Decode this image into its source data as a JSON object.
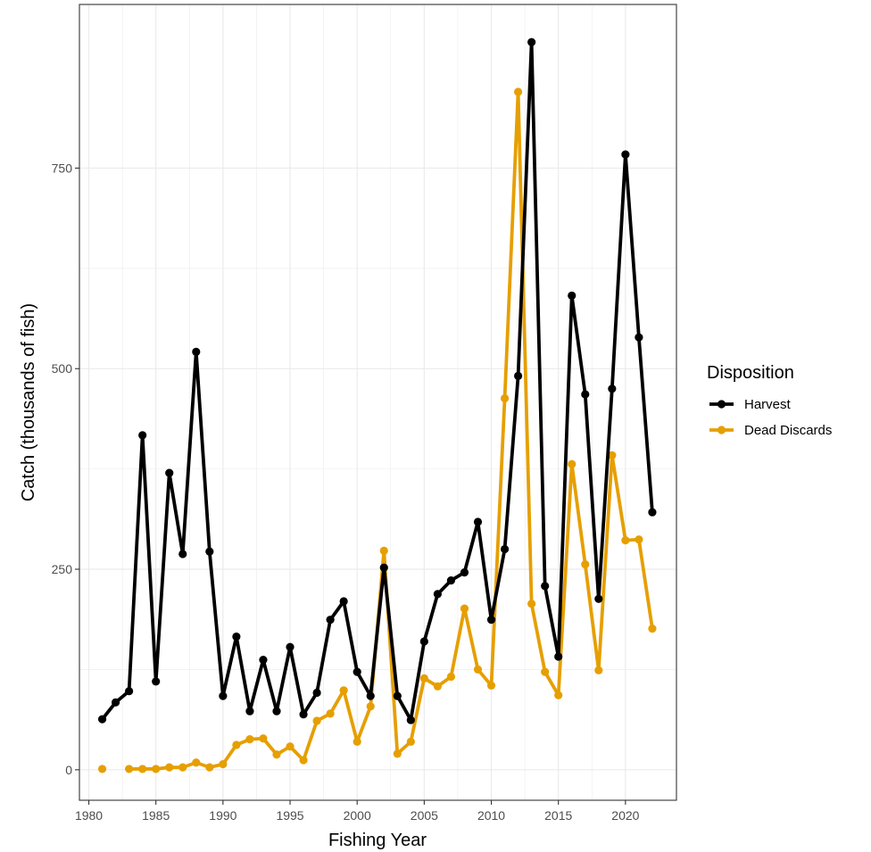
{
  "chart_data": {
    "type": "line",
    "xlabel": "Fishing Year",
    "ylabel": "Catch (thousands of fish)",
    "xlim": [
      1979.3,
      2023.8
    ],
    "ylim": [
      -38,
      954
    ],
    "x_ticks": [
      1980,
      1985,
      1990,
      1995,
      2000,
      2005,
      2010,
      2015,
      2020
    ],
    "y_ticks": [
      0,
      250,
      500,
      750
    ],
    "grid": true,
    "legend": {
      "title": "Disposition",
      "placement": "right"
    },
    "x": [
      1981,
      1982,
      1983,
      1984,
      1985,
      1986,
      1987,
      1988,
      1989,
      1990,
      1991,
      1992,
      1993,
      1994,
      1995,
      1996,
      1997,
      1998,
      1999,
      2000,
      2001,
      2002,
      2003,
      2004,
      2005,
      2006,
      2007,
      2008,
      2009,
      2010,
      2011,
      2012,
      2013,
      2014,
      2015,
      2016,
      2017,
      2018,
      2019,
      2020,
      2021,
      2022
    ],
    "series": [
      {
        "name": "Harvest",
        "color": "#000000",
        "values": [
          63,
          84,
          98,
          417,
          110,
          370,
          269,
          521,
          272,
          92,
          166,
          73,
          137,
          73,
          153,
          69,
          96,
          187,
          210,
          122,
          92,
          252,
          92,
          62,
          160,
          219,
          236,
          246,
          309,
          187,
          275,
          491,
          907,
          229,
          141,
          591,
          468,
          213,
          475,
          767,
          539,
          321
        ]
      },
      {
        "name": "Dead Discards",
        "color": "#E69F00",
        "values": [
          1,
          null,
          1,
          1,
          1,
          3,
          3,
          9,
          3,
          7,
          31,
          38,
          39,
          19,
          29,
          12,
          61,
          70,
          99,
          35,
          79,
          273,
          20,
          35,
          114,
          104,
          116,
          201,
          125,
          105,
          463,
          845,
          207,
          122,
          93,
          381,
          256,
          124,
          392,
          286,
          287,
          176
        ]
      }
    ]
  }
}
